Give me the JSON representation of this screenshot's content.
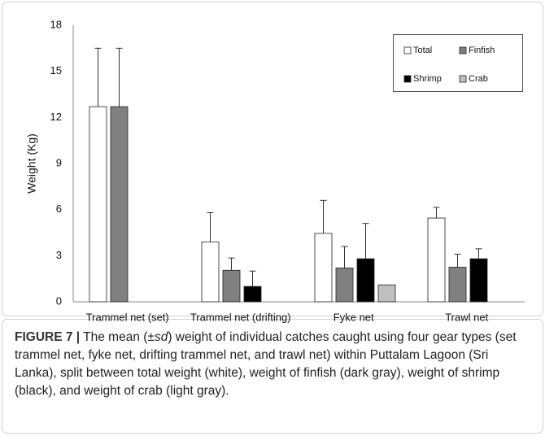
{
  "chart_data": {
    "type": "bar",
    "ylabel": "Weight (Kg)",
    "categories": [
      "Trammel net (set)",
      "Trammel net (drifting)",
      "Fyke net",
      "Trawl net"
    ],
    "series": [
      {
        "name": "Total",
        "color": "#ffffff",
        "values": [
          12.7,
          3.9,
          4.45,
          5.45
        ],
        "errors": [
          3.8,
          1.9,
          2.15,
          0.7
        ]
      },
      {
        "name": "Finfish",
        "color": "#808080",
        "values": [
          12.7,
          2.05,
          2.2,
          2.25
        ],
        "errors": [
          3.8,
          0.8,
          1.4,
          0.85
        ]
      },
      {
        "name": "Shrimp",
        "color": "#000000",
        "values": [
          null,
          1.0,
          2.8,
          2.8
        ],
        "errors": [
          null,
          1.0,
          2.3,
          0.65
        ]
      },
      {
        "name": "Crab",
        "color": "#bfbfbf",
        "values": [
          null,
          null,
          1.1,
          null
        ],
        "errors": [
          null,
          null,
          null,
          null
        ]
      }
    ],
    "ylim": [
      0,
      18
    ],
    "yticks": [
      0,
      3,
      6,
      9,
      12,
      15,
      18
    ],
    "grid": false,
    "legend": "upper right"
  },
  "caption": {
    "label": "FIGURE 7 |",
    "text_before": " The mean (±",
    "italic": "sd",
    "text_after": ") weight of individual catches caught using four gear types (set trammel net, fyke net, drifting trammel net, and trawl net) within Puttalam Lagoon (Sri Lanka), split between total weight (white), weight of finfish (dark gray), weight of shrimp (black), and weight of crab (light gray)."
  }
}
